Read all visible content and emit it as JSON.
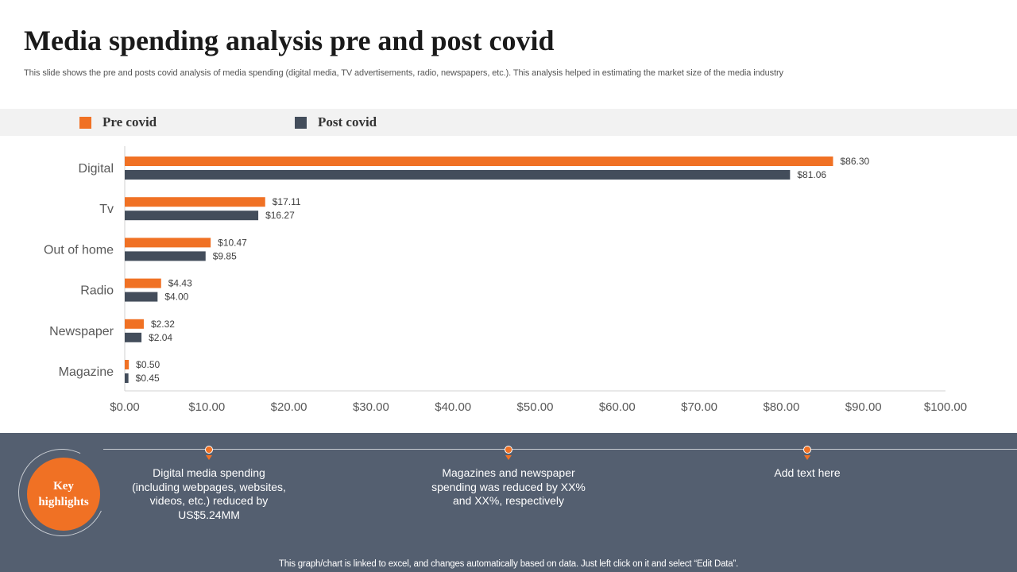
{
  "slide": {
    "title": "Media spending analysis pre and post covid",
    "subtitle": "This slide shows the pre and posts covid analysis of media spending (digital media, TV advertisements, radio, newspapers, etc.). This analysis helped in estimating the market size of the media industry"
  },
  "legend": [
    {
      "label": "Pre covid",
      "color": "#f07124"
    },
    {
      "label": "Post covid",
      "color": "#434d5b"
    }
  ],
  "chart_data": {
    "type": "bar",
    "orientation": "horizontal",
    "categories": [
      "Digital",
      "Tv",
      "Out of home",
      "Radio",
      "Newspaper",
      "Magazine"
    ],
    "series": [
      {
        "name": "Pre covid",
        "color": "#f07124",
        "values": [
          86.3,
          17.11,
          10.47,
          4.43,
          2.32,
          0.5
        ]
      },
      {
        "name": "Post covid",
        "color": "#434d5b",
        "values": [
          81.06,
          16.27,
          9.85,
          4.0,
          2.04,
          0.45
        ]
      }
    ],
    "data_labels": [
      [
        "$86.30",
        "$17.11",
        "$10.47",
        "$4.43",
        "$2.32",
        "$0.50"
      ],
      [
        "$81.06",
        "$16.27",
        "$9.85",
        "$4.00",
        "$2.04",
        "$0.45"
      ]
    ],
    "x_ticks": [
      "$0.00",
      "$10.00",
      "$20.00",
      "$30.00",
      "$40.00",
      "$50.00",
      "$60.00",
      "$70.00",
      "$80.00",
      "$90.00",
      "$100.00"
    ],
    "xlim": [
      0,
      100
    ],
    "grid": false,
    "legend_position": "top"
  },
  "highlights": {
    "key_label": "Key highlights",
    "items": [
      "Digital media spending (including webpages, websites, videos, etc.) reduced by US$5.24MM",
      "Magazines and newspaper spending was reduced by XX% and XX%, respectively",
      "Add text here"
    ]
  },
  "footnote": "This graph/chart is linked to excel,  and changes automatically based on data. Just left click on it and select “Edit Data”."
}
